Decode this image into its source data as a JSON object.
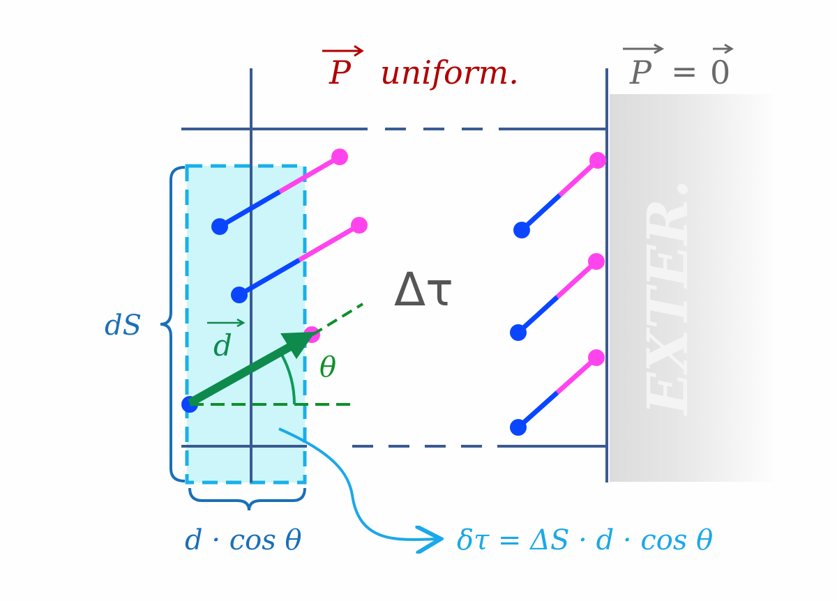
{
  "labels": {
    "p_uniform_symbol": "P",
    "p_uniform_text": "uniform.",
    "p_zero_lhs": "P",
    "p_zero_eq": "=",
    "p_zero_rhs": "0",
    "delta_tau": "Δτ",
    "dS": "dS",
    "d_vector": "d",
    "theta": "θ",
    "d_cos_theta": "d · cos θ",
    "formula": "δτ = ΔS · d · cos θ",
    "exterior": "EXTER."
  },
  "colors": {
    "wall": "#3a5a92",
    "region": "#ccf6fa",
    "region_border": "#1ab0e8",
    "brace": "#1a6fb8",
    "molecule_head": "#ff44ee",
    "molecule_tail": "#0a46ff",
    "vector": "#0e8a4c",
    "title_red": "#b00000",
    "gray_text": "#6a6a6a",
    "formula": "#1aa8e8"
  }
}
